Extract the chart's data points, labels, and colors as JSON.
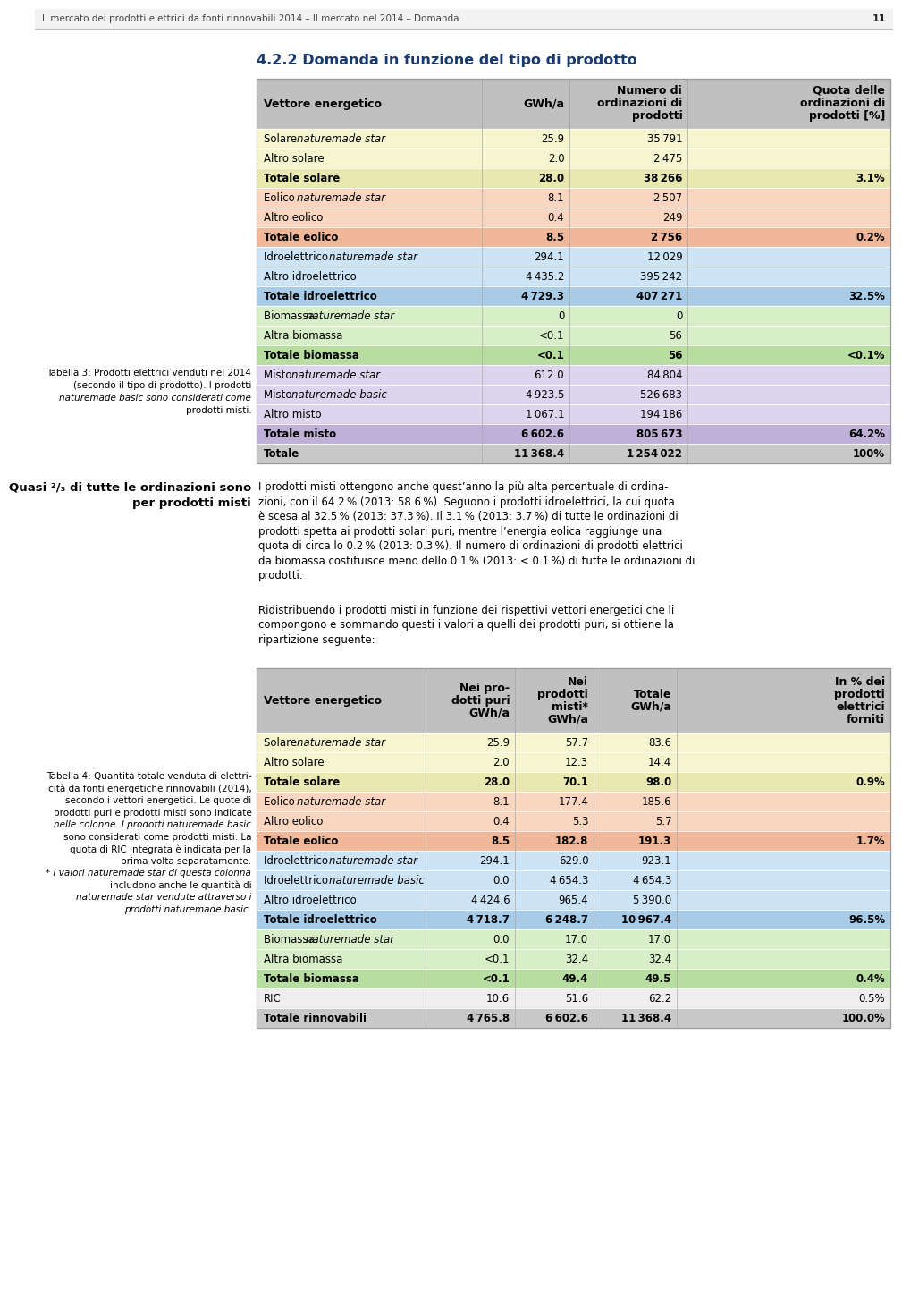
{
  "page_header": "Il mercato dei prodotti elettrici da fonti rinnovabili 2014 – Il mercato nel 2014 – Domanda",
  "page_number": "11",
  "section_title": "4.2.2 Domanda in funzione del tipo di prodotto",
  "dark_blue": "#1a3a6e",
  "table3_rows": [
    {
      "label": "Solare ",
      "lit": "naturemade star",
      "gwh": "25.9",
      "num": "35 791",
      "quota": "",
      "bg": "#f5f5d0",
      "bold": false
    },
    {
      "label": "Altro solare",
      "lit": "",
      "gwh": "2.0",
      "num": "2 475",
      "quota": "",
      "bg": "#f5f5d0",
      "bold": false
    },
    {
      "label": "Totale solare",
      "lit": "",
      "gwh": "28.0",
      "num": "38 266",
      "quota": "3.1%",
      "bg": "#e8e8b0",
      "bold": true
    },
    {
      "label": "Eolico ",
      "lit": "naturemade star",
      "gwh": "8.1",
      "num": "2 507",
      "quota": "",
      "bg": "#fad5c0",
      "bold": false
    },
    {
      "label": "Altro eolico",
      "lit": "",
      "gwh": "0.4",
      "num": "249",
      "quota": "",
      "bg": "#fad5c0",
      "bold": false
    },
    {
      "label": "Totale eolico",
      "lit": "",
      "gwh": "8.5",
      "num": "2 756",
      "quota": "0.2%",
      "bg": "#f0b898",
      "bold": true
    },
    {
      "label": "Idroelettrico ",
      "lit": "naturemade star",
      "gwh": "294.1",
      "num": "12 029",
      "quota": "",
      "bg": "#cce4f5",
      "bold": false
    },
    {
      "label": "Altro idroelettrico",
      "lit": "",
      "gwh": "4 435.2",
      "num": "395 242",
      "quota": "",
      "bg": "#cce4f5",
      "bold": false
    },
    {
      "label": "Totale idroelettrico",
      "lit": "",
      "gwh": "4 729.3",
      "num": "407 271",
      "quota": "32.5%",
      "bg": "#a8cce8",
      "bold": true
    },
    {
      "label": "Biomassa ",
      "lit": "naturemade star",
      "gwh": "0",
      "num": "0",
      "quota": "",
      "bg": "#d8eec8",
      "bold": false
    },
    {
      "label": "Altra biomassa",
      "lit": "",
      "gwh": "<0.1",
      "num": "56",
      "quota": "",
      "bg": "#d8eec8",
      "bold": false
    },
    {
      "label": "Totale biomassa",
      "lit": "",
      "gwh": "<0.1",
      "num": "56",
      "quota": "<0.1%",
      "bg": "#b8dda0",
      "bold": true
    },
    {
      "label": "Misto ",
      "lit": "naturemade star",
      "gwh": "612.0",
      "num": "84 804",
      "quota": "",
      "bg": "#ddd5ed",
      "bold": false
    },
    {
      "label": "Misto ",
      "lit": "naturemade basic",
      "gwh": "4 923.5",
      "num": "526 683",
      "quota": "",
      "bg": "#ddd5ed",
      "bold": false
    },
    {
      "label": "Altro misto",
      "lit": "",
      "gwh": "1 067.1",
      "num": "194 186",
      "quota": "",
      "bg": "#ddd5ed",
      "bold": false
    },
    {
      "label": "Totale misto",
      "lit": "",
      "gwh": "6 602.6",
      "num": "805 673",
      "quota": "64.2%",
      "bg": "#bfb0d8",
      "bold": true
    },
    {
      "label": "Totale",
      "lit": "",
      "gwh": "11 368.4",
      "num": "1 254 022",
      "quota": "100%",
      "bg": "#c8c8c8",
      "bold": true
    }
  ],
  "table3_caption_lines": [
    "Tabella 3: Prodotti elettrici venduti nel 2014",
    "(secondo il tipo di prodotto). I prodotti",
    "naturemade basic sono considerati come",
    "prodotti misti."
  ],
  "table3_caption_italic": [
    false,
    false,
    true,
    false
  ],
  "sidebar_line1": "Quasi ²/₃ di tutte le ordinazioni sono",
  "sidebar_line2": "per prodotti misti",
  "body1_lines": [
    "I prodotti misti ottengono anche quest’anno la più alta percentuale di ordina-",
    "zioni, con il 64.2 % (2013: 58.6 %). Seguono i prodotti idroelettrici, la cui quota",
    "è scesa al 32.5 % (2013: 37.3 %). Il 3.1 % (2013: 3.7 %) di tutte le ordinazioni di",
    "prodotti spetta ai prodotti solari puri, mentre l’energia eolica raggiunge una",
    "quota di circa lo 0.2 % (2013: 0.3 %). Il numero di ordinazioni di prodotti elettrici",
    "da biomassa costituisce meno dello 0.1 % (2013: < 0.1 %) di tutte le ordinazioni di",
    "prodotti."
  ],
  "body2_lines": [
    "Ridistribuendo i prodotti misti in funzione dei rispettivi vettori energetici che li",
    "compongono e sommando questi i valori a quelli dei prodotti puri, si ottiene la",
    "ripartizione seguente:"
  ],
  "table4_rows": [
    {
      "label": "Solare ",
      "lit": "naturemade star",
      "p": "25.9",
      "m": "57.7",
      "t": "83.6",
      "pct": "",
      "bg": "#f5f5d0",
      "bold": false
    },
    {
      "label": "Altro solare",
      "lit": "",
      "p": "2.0",
      "m": "12.3",
      "t": "14.4",
      "pct": "",
      "bg": "#f5f5d0",
      "bold": false
    },
    {
      "label": "Totale solare",
      "lit": "",
      "p": "28.0",
      "m": "70.1",
      "t": "98.0",
      "pct": "0.9%",
      "bg": "#e8e8b0",
      "bold": true
    },
    {
      "label": "Eolico ",
      "lit": "naturemade star",
      "p": "8.1",
      "m": "177.4",
      "t": "185.6",
      "pct": "",
      "bg": "#fad5c0",
      "bold": false
    },
    {
      "label": "Altro eolico",
      "lit": "",
      "p": "0.4",
      "m": "5.3",
      "t": "5.7",
      "pct": "",
      "bg": "#fad5c0",
      "bold": false
    },
    {
      "label": "Totale eolico",
      "lit": "",
      "p": "8.5",
      "m": "182.8",
      "t": "191.3",
      "pct": "1.7%",
      "bg": "#f0b898",
      "bold": true
    },
    {
      "label": "Idroelettrico ",
      "lit": "naturemade star",
      "p": "294.1",
      "m": "629.0",
      "t": "923.1",
      "pct": "",
      "bg": "#cce4f5",
      "bold": false
    },
    {
      "label": "Idroelettrico ",
      "lit": "naturemade basic",
      "p": "0.0",
      "m": "4 654.3",
      "t": "4 654.3",
      "pct": "",
      "bg": "#cce4f5",
      "bold": false
    },
    {
      "label": "Altro idroelettrico",
      "lit": "",
      "p": "4 424.6",
      "m": "965.4",
      "t": "5 390.0",
      "pct": "",
      "bg": "#cce4f5",
      "bold": false
    },
    {
      "label": "Totale idroelettrico",
      "lit": "",
      "p": "4 718.7",
      "m": "6 248.7",
      "t": "10 967.4",
      "pct": "96.5%",
      "bg": "#a8cce8",
      "bold": true
    },
    {
      "label": "Biomassa ",
      "lit": "naturemade star",
      "p": "0.0",
      "m": "17.0",
      "t": "17.0",
      "pct": "",
      "bg": "#d8eec8",
      "bold": false
    },
    {
      "label": "Altra biomassa",
      "lit": "",
      "p": "<0.1",
      "m": "32.4",
      "t": "32.4",
      "pct": "",
      "bg": "#d8eec8",
      "bold": false
    },
    {
      "label": "Totale biomassa",
      "lit": "",
      "p": "<0.1",
      "m": "49.4",
      "t": "49.5",
      "pct": "0.4%",
      "bg": "#b8dda0",
      "bold": true
    },
    {
      "label": "RIC",
      "lit": "",
      "p": "10.6",
      "m": "51.6",
      "t": "62.2",
      "pct": "0.5%",
      "bg": "#eeeeee",
      "bold": false
    },
    {
      "label": "Totale rinnovabili",
      "lit": "",
      "p": "4 765.8",
      "m": "6 602.6",
      "t": "11 368.4",
      "pct": "100.0%",
      "bg": "#c8c8c8",
      "bold": true
    }
  ],
  "table4_caption_lines": [
    "Tabella 4: Quantità totale venduta di elettri-",
    "cità da fonti energetiche rinnovabili (2014),",
    "secondo i vettori energetici. Le quote di",
    "prodotti puri e prodotti misti sono indicate",
    "nelle colonne. I prodotti naturemade basic",
    "sono considerati come prodotti misti. La",
    "quota di RIC integrata è indicata per la",
    "prima volta separatamente.",
    "* I valori naturemade star di questa colonna",
    "includono anche le quantità di",
    "naturemade star vendute attraverso i",
    "prodotti naturemade basic."
  ],
  "table4_caption_italic": [
    false,
    false,
    false,
    false,
    true,
    false,
    false,
    false,
    true,
    false,
    true,
    true
  ]
}
